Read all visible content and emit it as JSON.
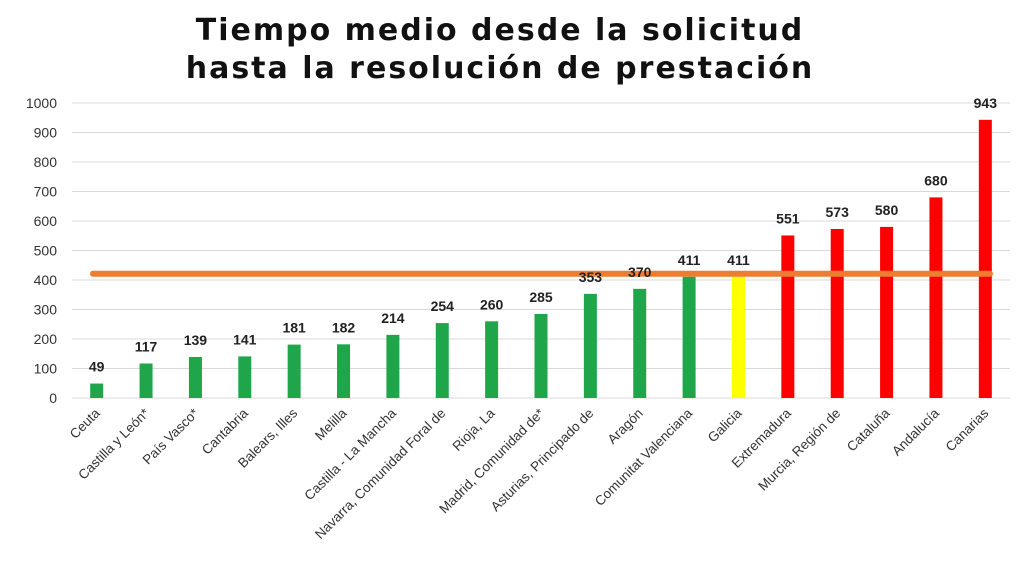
{
  "title": {
    "line1": "Tiempo medio desde la solicitud",
    "line2": "hasta la resolución de prestación"
  },
  "chart_data": {
    "type": "bar",
    "categories": [
      "Ceuta",
      "Castilla y León*",
      "País Vasco*",
      "Cantabria",
      "Balears, Illes",
      "Melilla",
      "Castilla - La Mancha",
      "Navarra, Comunidad Foral de",
      "Rioja, La",
      "Madrid, Comunidad de*",
      "Asturias, Principado de",
      "Aragón",
      "Comunitat Valenciana",
      "Galicia",
      "Extremadura",
      "Murcia, Región de",
      "Cataluña",
      "Andalucía",
      "Canarias"
    ],
    "values": [
      49,
      117,
      139,
      141,
      181,
      182,
      214,
      254,
      260,
      285,
      353,
      370,
      411,
      411,
      551,
      573,
      580,
      680,
      943
    ],
    "bar_colors": [
      "#1fa64a",
      "#1fa64a",
      "#1fa64a",
      "#1fa64a",
      "#1fa64a",
      "#1fa64a",
      "#1fa64a",
      "#1fa64a",
      "#1fa64a",
      "#1fa64a",
      "#1fa64a",
      "#1fa64a",
      "#1fa64a",
      "#ffff00",
      "#ff0000",
      "#ff0000",
      "#ff0000",
      "#ff0000",
      "#ff0000"
    ],
    "ylim": [
      0,
      1000
    ],
    "yticks": [
      0,
      100,
      200,
      300,
      400,
      500,
      600,
      700,
      800,
      900,
      1000
    ],
    "reference_line": {
      "value": 421,
      "color": "#ed7d31"
    },
    "grid": true,
    "legend": "none",
    "xlabel": "",
    "ylabel": ""
  }
}
